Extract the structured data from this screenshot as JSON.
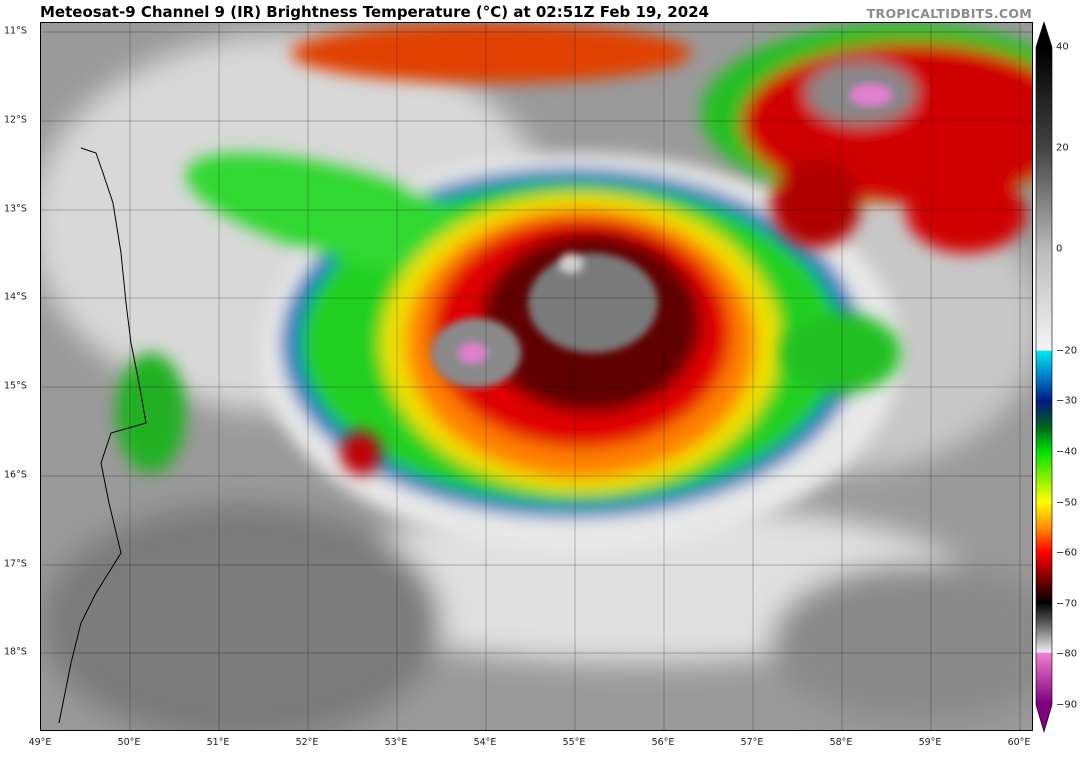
{
  "title": "Meteosat-9 Channel 9 (IR) Brightness Temperature (°C) at 02:51Z Feb 19, 2024",
  "watermark": "TROPICALTIDBITS.COM",
  "map": {
    "lon_range": [
      49,
      60.15
    ],
    "lat_range": [
      -10.9,
      -18.9
    ],
    "lat_labels": [
      "11°S",
      "12°S",
      "13°S",
      "14°S",
      "15°S",
      "16°S",
      "17°S",
      "18°S"
    ],
    "lon_labels": [
      "49°E",
      "50°E",
      "51°E",
      "52°E",
      "53°E",
      "54°E",
      "55°E",
      "56°E",
      "57°E",
      "58°E",
      "59°E",
      "60°E"
    ],
    "gridlines": true
  },
  "colorbar": {
    "ticks": [
      "40",
      "20",
      "0",
      "−20",
      "−30",
      "−40",
      "−50",
      "−60",
      "−70",
      "−80",
      "−90"
    ],
    "range": [
      40,
      -90
    ],
    "stops": [
      {
        "value": 40,
        "color": "#000000"
      },
      {
        "value": 20,
        "color": "#444444"
      },
      {
        "value": 0,
        "color": "#bbbbbb"
      },
      {
        "value": -19.9,
        "color": "#f4f4f4"
      },
      {
        "value": -20,
        "color": "#00e8f0"
      },
      {
        "value": -25,
        "color": "#0080c8"
      },
      {
        "value": -30,
        "color": "#001a80"
      },
      {
        "value": -35,
        "color": "#006020"
      },
      {
        "value": -40,
        "color": "#00e000"
      },
      {
        "value": -50,
        "color": "#ffff00"
      },
      {
        "value": -55,
        "color": "#ff9000"
      },
      {
        "value": -60,
        "color": "#ff0000"
      },
      {
        "value": -65,
        "color": "#800000"
      },
      {
        "value": -70,
        "color": "#000000"
      },
      {
        "value": -75,
        "color": "#707070"
      },
      {
        "value": -79.9,
        "color": "#f0f0f0"
      },
      {
        "value": -80,
        "color": "#f080d0"
      },
      {
        "value": -90,
        "color": "#800080"
      }
    ]
  }
}
